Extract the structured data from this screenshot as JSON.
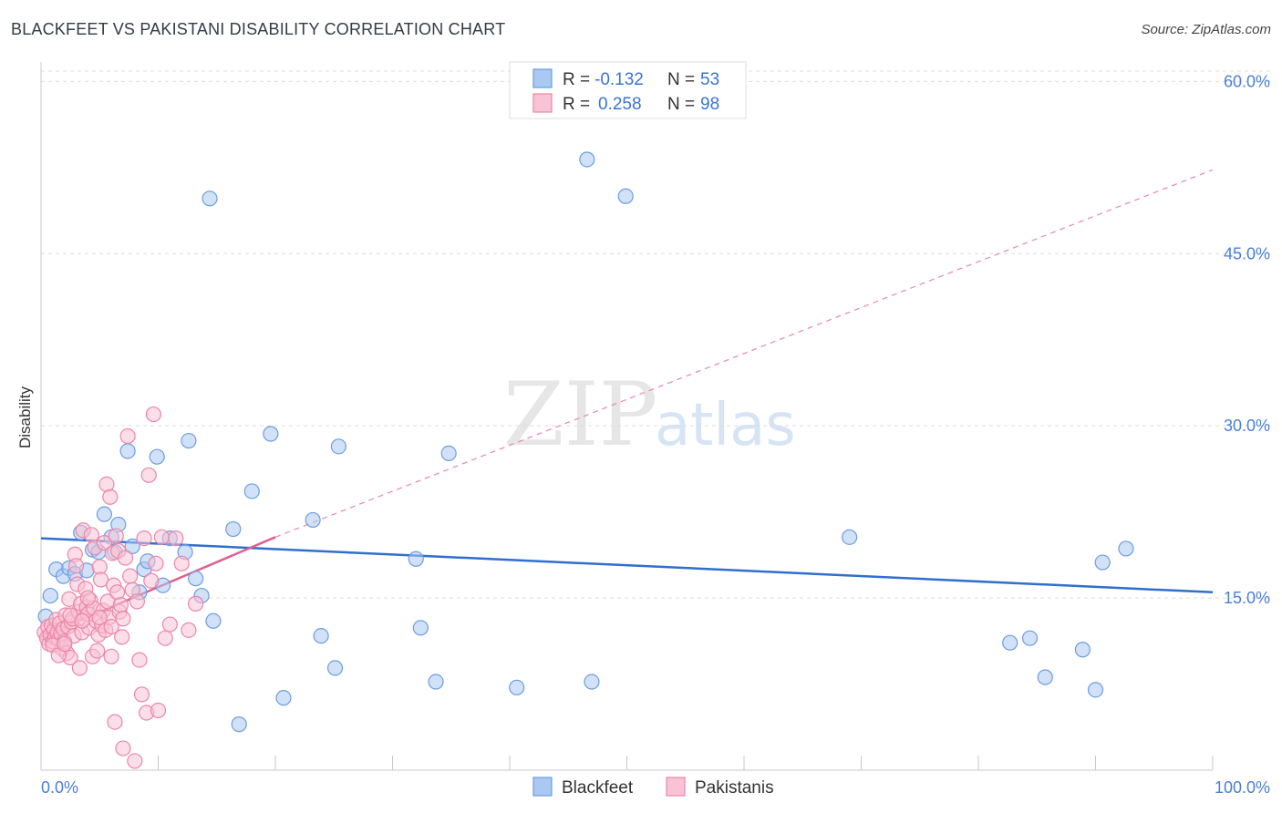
{
  "header": {
    "title": "BLACKFEET VS PAKISTANI DISABILITY CORRELATION CHART",
    "source": "Source: ZipAtlas.com"
  },
  "watermark": {
    "zip": "ZIP",
    "atlas": "atlas"
  },
  "legend": {
    "rows": [
      {
        "r_label": "R =",
        "r_value": "-0.132",
        "n_label": "N =",
        "n_value": "53",
        "color": "#a9c8f2",
        "border": "#6d9de0"
      },
      {
        "r_label": "R =",
        "r_value": "0.258",
        "n_label": "N =",
        "n_value": "98",
        "color": "#f8c3d4",
        "border": "#ec86a8"
      }
    ]
  },
  "bottom_legend": {
    "items": [
      {
        "label": "Blackfeet"
      },
      {
        "label": "Pakistanis"
      }
    ]
  },
  "chart_data": {
    "type": "scatter",
    "title": "BLACKFEET VS PAKISTANI DISABILITY CORRELATION CHART",
    "xlabel": "",
    "ylabel": "Disability",
    "xlim": [
      0,
      100
    ],
    "ylim": [
      0,
      60.9
    ],
    "x_tick_labels": [
      "0.0%",
      "100.0%"
    ],
    "y_ticks": [
      15,
      30,
      45,
      60
    ],
    "y_tick_labels": [
      "15.0%",
      "30.0%",
      "45.0%",
      "60.0%"
    ],
    "grid": true,
    "series": [
      {
        "name": "Blackfeet",
        "color": "#a9c8f2",
        "stroke": "#6d9de0",
        "r": -0.132,
        "n": 53,
        "trend": {
          "x0": 0,
          "y0": 20.2,
          "x1": 100,
          "y1": 15.5
        },
        "points": [
          [
            0.4,
            13.4
          ],
          [
            0.8,
            15.2
          ],
          [
            1.3,
            17.5
          ],
          [
            1.9,
            16.9
          ],
          [
            2.4,
            17.6
          ],
          [
            2.9,
            17.1
          ],
          [
            3.4,
            20.7
          ],
          [
            3.9,
            17.4
          ],
          [
            4.4,
            19.2
          ],
          [
            4.9,
            19.0
          ],
          [
            5.4,
            22.3
          ],
          [
            6.0,
            20.3
          ],
          [
            6.3,
            19.0
          ],
          [
            6.6,
            21.4
          ],
          [
            7.4,
            27.8
          ],
          [
            7.8,
            19.5
          ],
          [
            8.4,
            15.5
          ],
          [
            8.8,
            17.5
          ],
          [
            9.1,
            18.2
          ],
          [
            9.9,
            27.3
          ],
          [
            10.4,
            16.1
          ],
          [
            11.0,
            20.2
          ],
          [
            12.3,
            19.0
          ],
          [
            12.6,
            28.7
          ],
          [
            13.2,
            16.7
          ],
          [
            13.7,
            15.2
          ],
          [
            14.4,
            49.8
          ],
          [
            14.7,
            13.0
          ],
          [
            16.4,
            21.0
          ],
          [
            16.9,
            4.0
          ],
          [
            18.0,
            24.3
          ],
          [
            19.6,
            29.3
          ],
          [
            20.7,
            6.3
          ],
          [
            23.2,
            21.8
          ],
          [
            23.9,
            11.7
          ],
          [
            25.1,
            8.9
          ],
          [
            25.4,
            28.2
          ],
          [
            32.0,
            18.4
          ],
          [
            32.4,
            12.4
          ],
          [
            33.7,
            7.7
          ],
          [
            34.8,
            27.6
          ],
          [
            40.6,
            7.2
          ],
          [
            46.6,
            53.2
          ],
          [
            47.0,
            7.7
          ],
          [
            49.9,
            50.0
          ],
          [
            69.0,
            20.3
          ],
          [
            82.7,
            11.1
          ],
          [
            84.4,
            11.5
          ],
          [
            85.7,
            8.1
          ],
          [
            88.9,
            10.5
          ],
          [
            90.0,
            7.0
          ],
          [
            90.6,
            18.1
          ],
          [
            92.6,
            19.3
          ]
        ]
      },
      {
        "name": "Pakistanis",
        "color": "#f8c3d4",
        "stroke": "#ec86a8",
        "r": 0.258,
        "n": 98,
        "trend": {
          "x0": 0,
          "y0": 11.6,
          "x1": 20,
          "y1": 20.3,
          "dash_x1": 100,
          "dash_y1": 52.3
        },
        "points": [
          [
            0.3,
            12.0
          ],
          [
            0.5,
            11.5
          ],
          [
            0.6,
            12.5
          ],
          [
            0.7,
            11.0
          ],
          [
            0.8,
            11.8
          ],
          [
            0.9,
            12.6
          ],
          [
            1.0,
            11.2
          ],
          [
            1.1,
            12.2
          ],
          [
            1.2,
            11.6
          ],
          [
            1.3,
            13.1
          ],
          [
            1.4,
            12.0
          ],
          [
            1.5,
            11.4
          ],
          [
            1.6,
            12.8
          ],
          [
            1.7,
            11.9
          ],
          [
            1.8,
            10.6
          ],
          [
            1.9,
            12.3
          ],
          [
            2.0,
            11.2
          ],
          [
            2.1,
            13.5
          ],
          [
            2.2,
            10.2
          ],
          [
            2.3,
            12.5
          ],
          [
            2.4,
            14.9
          ],
          [
            2.5,
            9.8
          ],
          [
            2.6,
            12.9
          ],
          [
            2.7,
            13.2
          ],
          [
            2.8,
            11.7
          ],
          [
            2.9,
            18.8
          ],
          [
            3.0,
            17.8
          ],
          [
            3.1,
            16.2
          ],
          [
            3.2,
            13.8
          ],
          [
            3.3,
            8.9
          ],
          [
            3.4,
            14.5
          ],
          [
            3.5,
            12.0
          ],
          [
            3.6,
            20.9
          ],
          [
            3.7,
            13.2
          ],
          [
            3.8,
            15.8
          ],
          [
            3.9,
            14.2
          ],
          [
            4.0,
            13.6
          ],
          [
            4.1,
            12.4
          ],
          [
            4.2,
            14.8
          ],
          [
            4.3,
            20.5
          ],
          [
            4.4,
            9.9
          ],
          [
            4.5,
            14.1
          ],
          [
            4.6,
            19.4
          ],
          [
            4.7,
            13.0
          ],
          [
            4.8,
            10.4
          ],
          [
            4.9,
            11.8
          ],
          [
            5.0,
            17.7
          ],
          [
            5.1,
            16.6
          ],
          [
            5.2,
            12.6
          ],
          [
            5.3,
            13.9
          ],
          [
            5.4,
            19.8
          ],
          [
            5.5,
            12.2
          ],
          [
            5.6,
            24.9
          ],
          [
            5.7,
            14.7
          ],
          [
            5.8,
            13.3
          ],
          [
            5.9,
            23.8
          ],
          [
            6.0,
            9.9
          ],
          [
            6.1,
            18.9
          ],
          [
            6.2,
            16.1
          ],
          [
            6.3,
            4.2
          ],
          [
            6.4,
            20.4
          ],
          [
            6.5,
            15.5
          ],
          [
            6.6,
            19.1
          ],
          [
            6.7,
            13.8
          ],
          [
            6.8,
            14.4
          ],
          [
            6.9,
            11.6
          ],
          [
            7.0,
            1.9
          ],
          [
            7.2,
            18.5
          ],
          [
            7.4,
            29.1
          ],
          [
            7.6,
            16.9
          ],
          [
            7.8,
            15.7
          ],
          [
            8.0,
            0.8
          ],
          [
            8.2,
            14.7
          ],
          [
            8.4,
            9.6
          ],
          [
            8.6,
            6.6
          ],
          [
            8.8,
            20.2
          ],
          [
            9.0,
            5.0
          ],
          [
            9.2,
            25.7
          ],
          [
            9.4,
            16.5
          ],
          [
            9.6,
            31.0
          ],
          [
            9.8,
            18.0
          ],
          [
            10.0,
            5.2
          ],
          [
            10.3,
            20.3
          ],
          [
            10.6,
            11.5
          ],
          [
            11.0,
            12.7
          ],
          [
            11.5,
            20.2
          ],
          [
            12.0,
            18.0
          ],
          [
            12.6,
            12.2
          ],
          [
            13.2,
            14.5
          ],
          [
            1.0,
            10.9
          ],
          [
            1.5,
            10.0
          ],
          [
            2.0,
            11.0
          ],
          [
            2.5,
            13.5
          ],
          [
            3.5,
            13.0
          ],
          [
            4.0,
            15.0
          ],
          [
            5.0,
            13.3
          ],
          [
            6.0,
            12.5
          ],
          [
            7.0,
            13.2
          ]
        ]
      }
    ]
  }
}
